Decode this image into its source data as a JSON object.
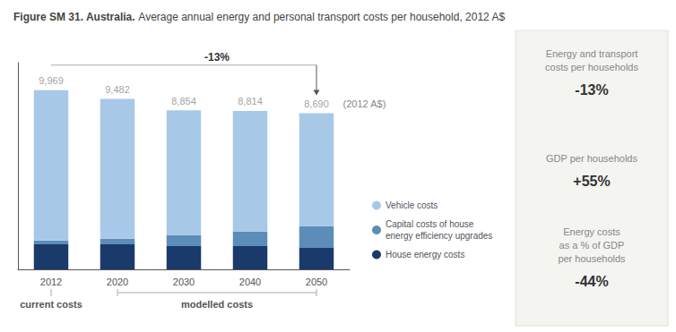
{
  "chart_data": {
    "type": "bar",
    "title": "Figure SM 31. Australia.",
    "subtitle": "Average annual energy and personal transport costs per household, 2012 A$",
    "categories": [
      "2012",
      "2020",
      "2030",
      "2040",
      "2050"
    ],
    "series": [
      {
        "name": "House energy costs",
        "color": "#1a3a6b",
        "values": [
          1400,
          1400,
          1300,
          1300,
          1200
        ]
      },
      {
        "name": "Capital costs of house\nenergy efficiency upgrades",
        "color": "#5b8db8",
        "values": [
          200,
          300,
          600,
          800,
          1200
        ]
      },
      {
        "name": "Vehicle costs",
        "color": "#a8c8e8",
        "values": [
          8369,
          7782,
          6954,
          6714,
          6290
        ]
      }
    ],
    "stacked": true,
    "totals": {
      "values": [
        9969,
        9482,
        8854,
        8814,
        8690
      ],
      "value_labels": [
        "9,969",
        "9,482",
        "8,854",
        "8,814",
        "8,690"
      ]
    },
    "unit_label": "(2012 A$)",
    "annotation": "-13%",
    "category_groups": [
      {
        "label": "current costs",
        "first": "2012",
        "last": "2012"
      },
      {
        "label": "modelled costs",
        "first": "2020",
        "last": "2050"
      }
    ],
    "side_panel": [
      {
        "label": "Energy and transport\ncosts per households",
        "value": "-13%"
      },
      {
        "label": "GDP per households",
        "value": "+55%"
      },
      {
        "label": "Energy costs\nas a % of GDP\nper households",
        "value": "-44%"
      }
    ],
    "ylim": [
      0,
      11500
    ],
    "grid": false,
    "legend": "right",
    "tick_labels": "x"
  }
}
